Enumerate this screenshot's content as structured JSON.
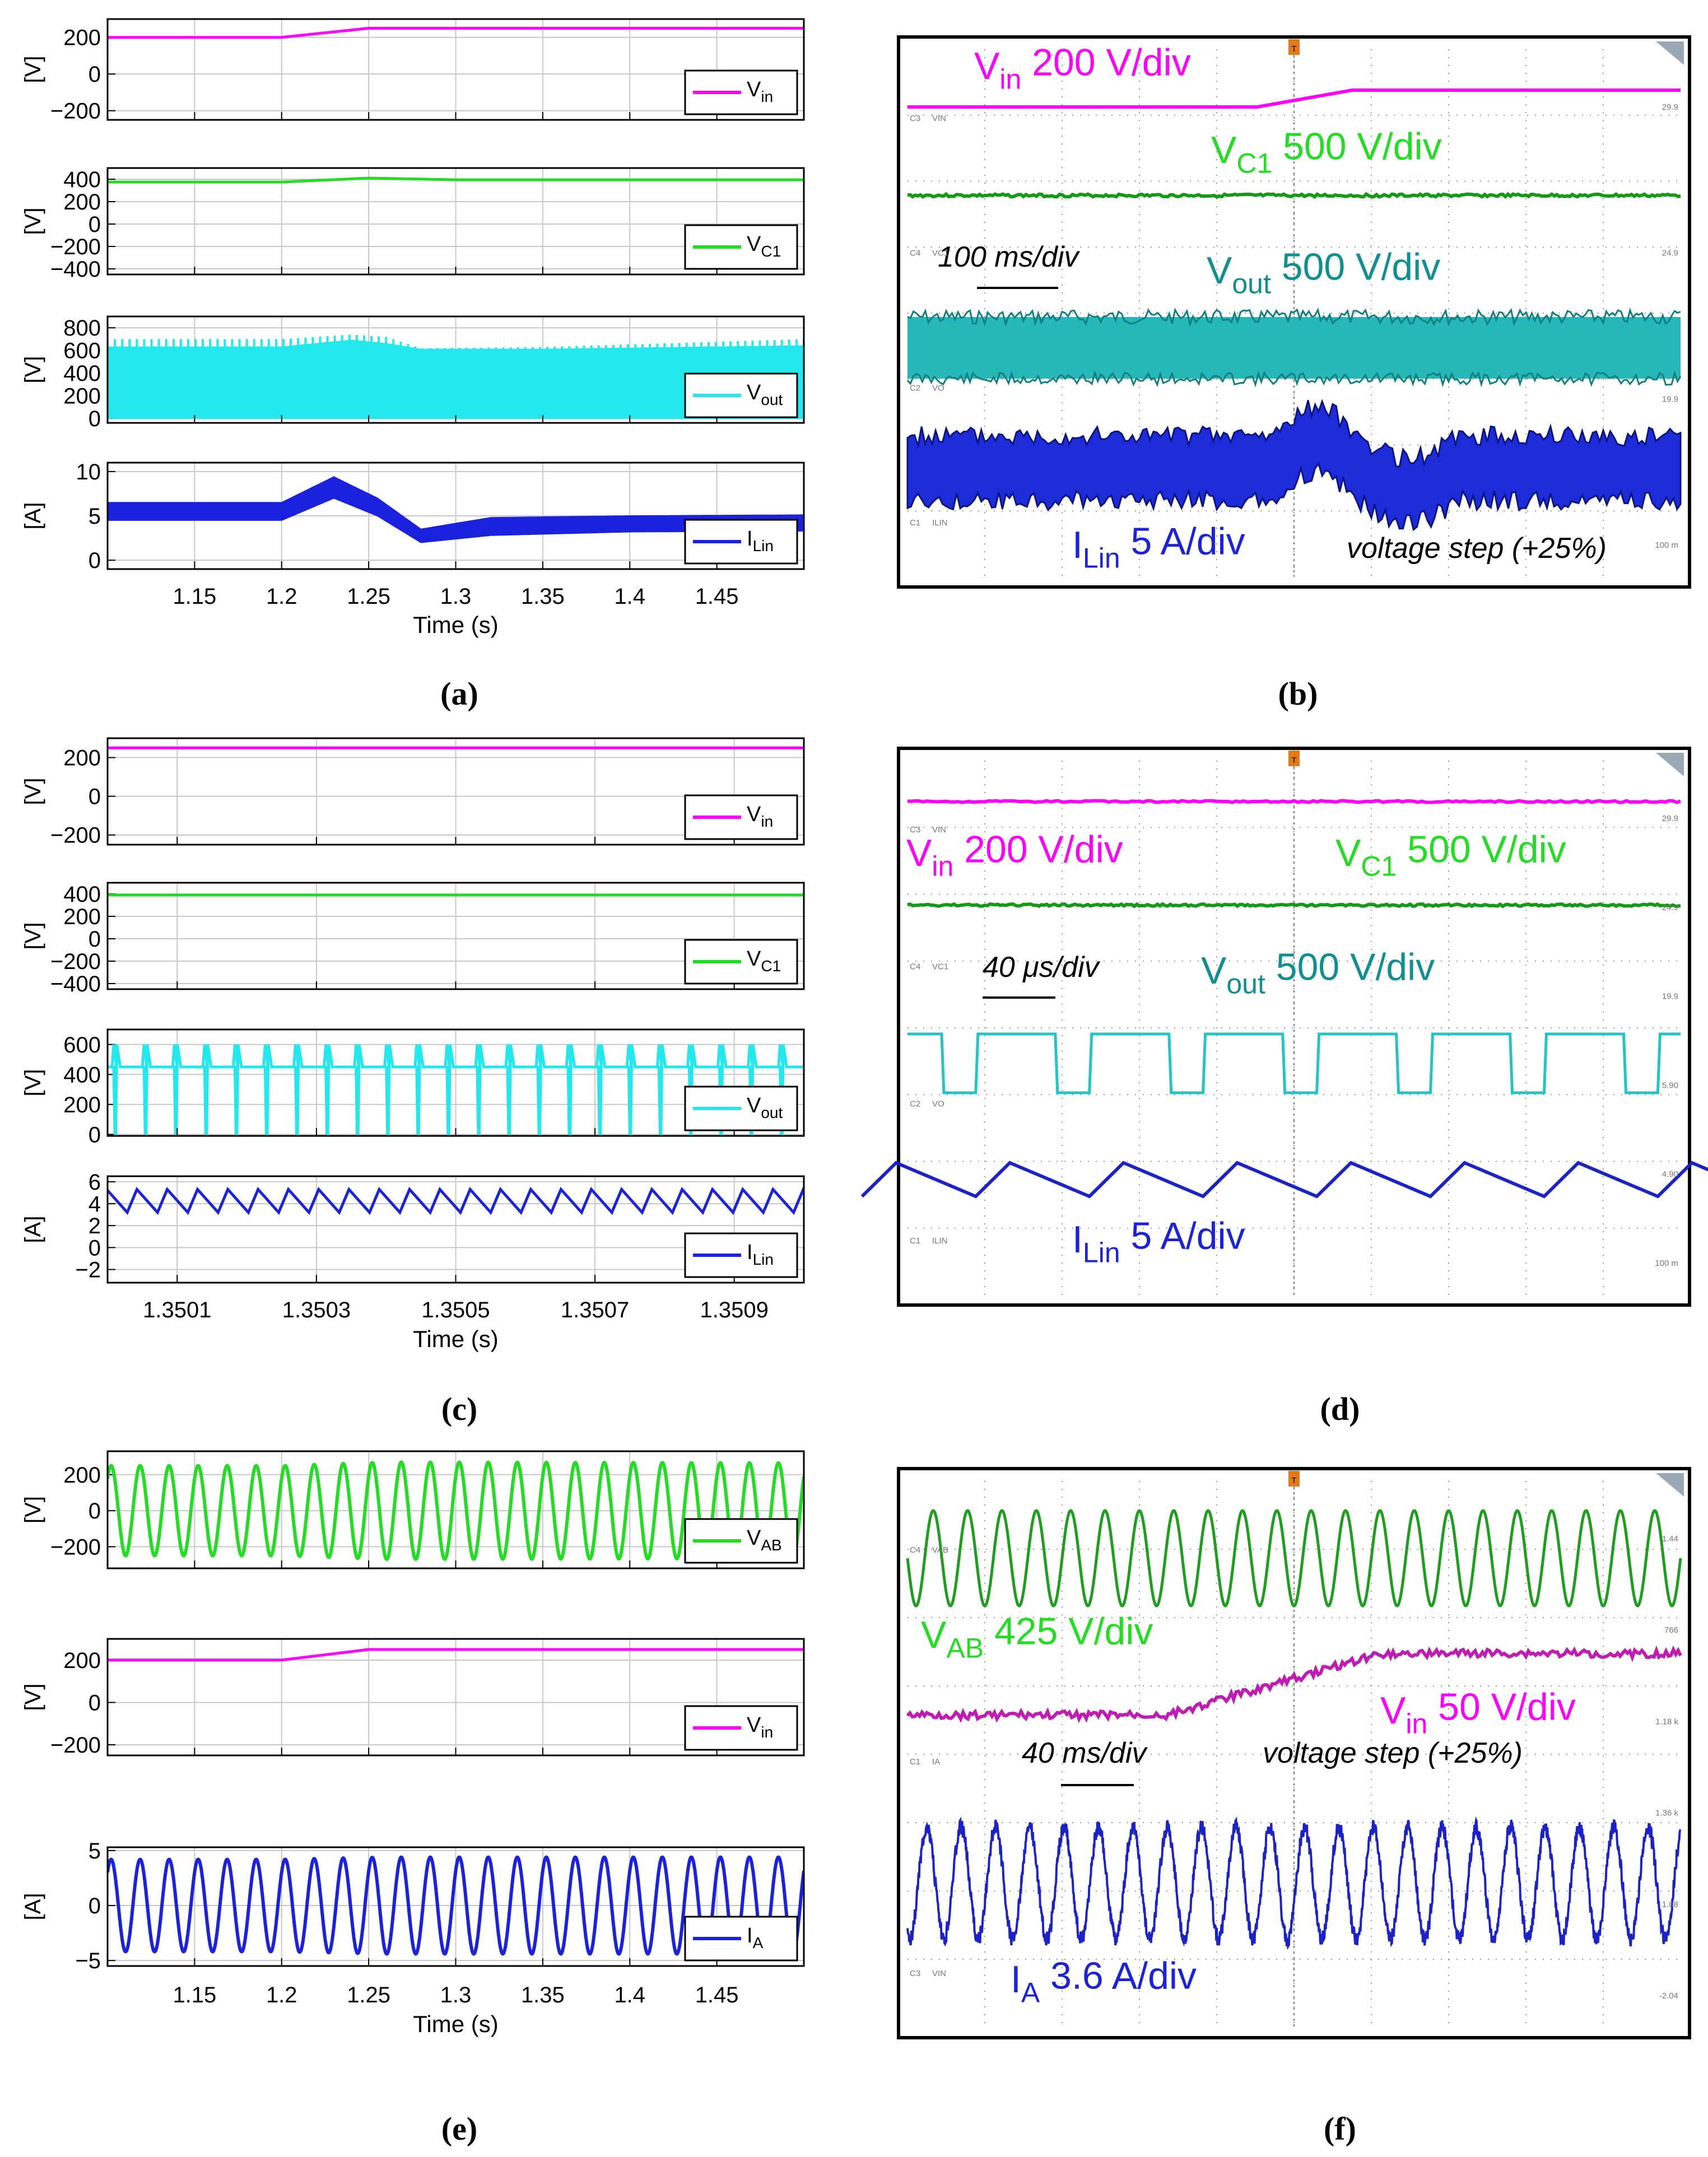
{
  "captions": [
    "(a)",
    "(b)",
    "(c)",
    "(d)",
    "(e)",
    "(f)"
  ],
  "colors": {
    "vin": "#ff00ff",
    "vc1": "#22dd22",
    "vout": "#22e8ee",
    "ilin": "#1a22dd",
    "vab": "#22dd22",
    "ia": "#1a22dd",
    "scope_bg": "#ffffff",
    "scope_grid": "#9a9a9a"
  },
  "chart_data": [
    {
      "id": "a",
      "type": "line",
      "xlabel": "Time (s)",
      "xlim": [
        1.1,
        1.5
      ],
      "xticks": [
        1.15,
        1.2,
        1.25,
        1.3,
        1.35,
        1.4,
        1.45
      ],
      "xtick_labels": [
        "1.15",
        "1.2",
        "1.25",
        "1.3",
        "1.35",
        "1.4",
        "1.45"
      ],
      "subplots": [
        {
          "ylabel": "[V]",
          "ylim": [
            -250,
            300
          ],
          "yticks": [
            200,
            0,
            -200
          ],
          "ytick_labels": [
            "200",
            "0",
            "−200"
          ],
          "legend": {
            "base": "V",
            "sub": "in"
          },
          "series": [
            {
              "kind": "ramp",
              "x": [
                1.1,
                1.2,
                1.25,
                1.5
              ],
              "y": [
                200,
                200,
                250,
                250
              ],
              "color_key": "vin"
            }
          ]
        },
        {
          "ylabel": "[V]",
          "ylim": [
            -450,
            500
          ],
          "yticks": [
            400,
            200,
            0,
            -200,
            -400
          ],
          "ytick_labels": [
            "400",
            "200",
            "0",
            "−200",
            "−400"
          ],
          "legend": {
            "base": "V",
            "sub": "C1"
          },
          "series": [
            {
              "kind": "ramp",
              "x": [
                1.1,
                1.2,
                1.25,
                1.3,
                1.5
              ],
              "y": [
                375,
                375,
                410,
                395,
                395
              ],
              "color_key": "vc1"
            }
          ]
        },
        {
          "ylabel": "[V]",
          "ylim": [
            -40,
            900
          ],
          "yticks": [
            800,
            600,
            400,
            200,
            0
          ],
          "ytick_labels": [
            "800",
            "600",
            "400",
            "200",
            "0"
          ],
          "legend": {
            "base": "V",
            "sub": "out"
          },
          "series": [
            {
              "kind": "band",
              "x": [
                1.1,
                1.2,
                1.24,
                1.26,
                1.28,
                1.35,
                1.5
              ],
              "low": [
                0,
                0,
                0,
                0,
                0,
                0,
                0
              ],
              "high": [
                630,
                630,
                690,
                660,
                610,
                610,
                640
              ],
              "spike": [
                700,
                700,
                740,
                720,
                620,
                630,
                700
              ],
              "color_key": "vout"
            }
          ]
        },
        {
          "ylabel": "[A]",
          "ylim": [
            -1,
            11
          ],
          "yticks": [
            10,
            5,
            0
          ],
          "ytick_labels": [
            "10",
            "5",
            "0"
          ],
          "legend": {
            "base": "I",
            "sub": "Lin"
          },
          "series": [
            {
              "kind": "band",
              "x": [
                1.1,
                1.2,
                1.23,
                1.255,
                1.28,
                1.32,
                1.4,
                1.5
              ],
              "low": [
                4.5,
                4.5,
                7.0,
                5.0,
                2.0,
                2.8,
                3.2,
                3.3
              ],
              "high": [
                6.5,
                6.5,
                9.4,
                7.0,
                3.5,
                4.8,
                5.0,
                5.1
              ],
              "color_key": "ilin"
            }
          ]
        }
      ]
    },
    {
      "id": "c",
      "type": "line",
      "xlabel": "Time (s)",
      "xlim": [
        1.35,
        1.351
      ],
      "xticks": [
        1.3501,
        1.3503,
        1.3505,
        1.3507,
        1.3509
      ],
      "xtick_labels": [
        "1.3501",
        "1.3503",
        "1.3505",
        "1.3507",
        "1.3509"
      ],
      "subplots": [
        {
          "ylabel": "[V]",
          "ylim": [
            -250,
            300
          ],
          "yticks": [
            200,
            0,
            -200
          ],
          "ytick_labels": [
            "200",
            "0",
            "−200"
          ],
          "legend": {
            "base": "V",
            "sub": "in"
          },
          "series": [
            {
              "kind": "ramp",
              "x": [
                1.35,
                1.351
              ],
              "y": [
                250,
                250
              ],
              "color_key": "vin"
            }
          ]
        },
        {
          "ylabel": "[V]",
          "ylim": [
            -450,
            500
          ],
          "yticks": [
            400,
            200,
            0,
            -200,
            -400
          ],
          "ytick_labels": [
            "400",
            "200",
            "0",
            "−200",
            "−400"
          ],
          "legend": {
            "base": "V",
            "sub": "C1"
          },
          "series": [
            {
              "kind": "ramp",
              "x": [
                1.35,
                1.351
              ],
              "y": [
                390,
                390
              ],
              "color_key": "vc1"
            }
          ]
        },
        {
          "ylabel": "[V]",
          "ylim": [
            -10,
            700
          ],
          "yticks": [
            600,
            400,
            200,
            0
          ],
          "ytick_labels": [
            "600",
            "400",
            "200",
            "0"
          ],
          "legend": {
            "base": "V",
            "sub": "out"
          },
          "series": [
            {
              "kind": "pulse",
              "period": 4.35e-05,
              "level": 450,
              "spike": 600,
              "color_key": "vout"
            }
          ]
        },
        {
          "ylabel": "[A]",
          "ylim": [
            -3.2,
            6.5
          ],
          "yticks": [
            6,
            4,
            2,
            0,
            -2
          ],
          "ytick_labels": [
            "6",
            "4",
            "2",
            "0",
            "−2"
          ],
          "legend": {
            "base": "I",
            "sub": "Lin"
          },
          "series": [
            {
              "kind": "saw",
              "period": 4.35e-05,
              "low": 3.2,
              "high": 5.3,
              "color_key": "ilin"
            }
          ]
        }
      ]
    },
    {
      "id": "e",
      "type": "line",
      "xlabel": "Time (s)",
      "xlim": [
        1.1,
        1.5
      ],
      "xticks": [
        1.15,
        1.2,
        1.25,
        1.3,
        1.35,
        1.4,
        1.45
      ],
      "xtick_labels": [
        "1.15",
        "1.2",
        "1.25",
        "1.3",
        "1.35",
        "1.4",
        "1.45"
      ],
      "subplots": [
        {
          "ylabel": "[V]",
          "ylim": [
            -320,
            330
          ],
          "yticks": [
            200,
            0,
            -200
          ],
          "ytick_labels": [
            "200",
            "0",
            "−200"
          ],
          "legend": {
            "base": "V",
            "sub": "AB"
          },
          "series": [
            {
              "kind": "sine",
              "freq": 60,
              "amp": [
                250,
                250,
                270,
                265
              ],
              "amp_x": [
                1.1,
                1.2,
                1.26,
                1.5
              ],
              "color_key": "vab"
            }
          ]
        },
        {
          "ylabel": "[V]",
          "ylim": [
            -250,
            300
          ],
          "yticks": [
            200,
            0,
            -200
          ],
          "ytick_labels": [
            "200",
            "0",
            "−200"
          ],
          "legend": {
            "base": "V",
            "sub": "in"
          },
          "series": [
            {
              "kind": "ramp",
              "x": [
                1.1,
                1.2,
                1.25,
                1.5
              ],
              "y": [
                200,
                200,
                250,
                250
              ],
              "color_key": "vin"
            }
          ]
        },
        {
          "ylabel": "[A]",
          "ylim": [
            -5.5,
            5.3
          ],
          "yticks": [
            5,
            0,
            -5
          ],
          "ytick_labels": [
            "5",
            "0",
            "−5"
          ],
          "legend": {
            "base": "I",
            "sub": "A"
          },
          "series": [
            {
              "kind": "sine",
              "freq": 60,
              "amp": [
                4.2,
                4.2,
                4.4,
                4.4
              ],
              "amp_x": [
                1.1,
                1.2,
                1.26,
                1.5
              ],
              "color_key": "ia"
            }
          ]
        }
      ]
    },
    {
      "id": "b",
      "type": "oscilloscope",
      "grid": {
        "cols": 10,
        "rows": 8
      },
      "labels": [
        {
          "base": "V",
          "sub": "in",
          "rest": " 200 V/div",
          "color_key": "vin"
        },
        {
          "base": "V",
          "sub": "C1",
          "rest": " 500 V/div",
          "color_key": "vc1"
        },
        {
          "base": "V",
          "sub": "out",
          "rest": " 500 V/div",
          "color_key": "vout_dark"
        },
        {
          "base": "I",
          "sub": "Lin",
          "rest": " 5 A/div",
          "color_key": "ilin"
        }
      ],
      "annotations": [
        "100 ms/div",
        "voltage step (+25%)"
      ],
      "channel_tags": [
        "C3",
        "VIN",
        "C4",
        "VC1",
        "C2",
        "VO",
        "C1",
        "ILIN"
      ],
      "right_tags": [
        "29.9",
        "24.9",
        "19.9",
        "100 m"
      ],
      "marker": "T"
    },
    {
      "id": "d",
      "type": "oscilloscope",
      "grid": {
        "cols": 10,
        "rows": 8
      },
      "labels": [
        {
          "base": "V",
          "sub": "in",
          "rest": " 200 V/div",
          "color_key": "vin"
        },
        {
          "base": "V",
          "sub": "C1",
          "rest": " 500 V/div",
          "color_key": "vc1"
        },
        {
          "base": "V",
          "sub": "out",
          "rest": " 500 V/div",
          "color_key": "vout_dark"
        },
        {
          "base": "I",
          "sub": "Lin",
          "rest": " 5 A/div",
          "color_key": "ilin"
        }
      ],
      "annotations": [
        "40 μs/div"
      ],
      "channel_tags": [
        "C3",
        "VIN",
        "C4",
        "VC1",
        "C2",
        "VO",
        "C1",
        "ILIN"
      ],
      "right_tags": [
        "29.9",
        "24.9",
        "19.9",
        "5.90",
        "4.90",
        "100 m"
      ],
      "marker": "T"
    },
    {
      "id": "f",
      "type": "oscilloscope",
      "grid": {
        "cols": 10,
        "rows": 8
      },
      "labels": [
        {
          "base": "V",
          "sub": "AB",
          "rest": " 425 V/div",
          "color_key": "vab"
        },
        {
          "base": "V",
          "sub": "in",
          "rest": " 50 V/div",
          "color_key": "vin"
        },
        {
          "base": "I",
          "sub": "A",
          "rest": " 3.6 A/div",
          "color_key": "ia"
        }
      ],
      "annotations": [
        "40 ms/div",
        "voltage step (+25%)"
      ],
      "channel_tags": [
        "C4",
        "VAB",
        "C1",
        "IA",
        "C3",
        "VIN"
      ],
      "right_tags": [
        "1.44",
        "766",
        "1.18 k",
        "1.36 k",
        "1.08",
        "-2.04"
      ],
      "marker": "T"
    }
  ]
}
